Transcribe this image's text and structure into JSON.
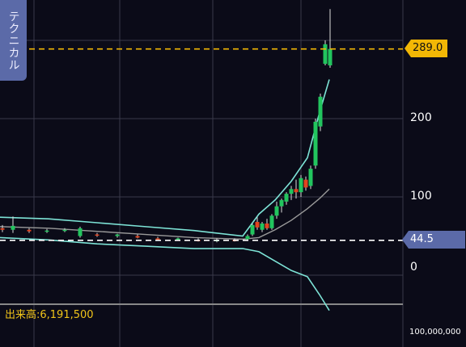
{
  "side_tab": {
    "label": "テクニカル"
  },
  "price_axis": {
    "ticks": [
      "200",
      "100",
      "0"
    ]
  },
  "price_tags": {
    "current": {
      "label": "289.0",
      "value": 289.0,
      "color": "#f2b705"
    },
    "reference": {
      "label": "44.5",
      "value": 44.5,
      "color": "#5b6aa8"
    }
  },
  "volume": {
    "label": "出来高:6,191,500",
    "axis_label": "100,000,000"
  },
  "colors": {
    "up": "#22c55e",
    "down": "#e2431e",
    "bollinger": "#7de3d6",
    "ma": "#9a9a9a",
    "grid": "#3a3a4a",
    "background": "#0b0b18"
  },
  "chart_data": {
    "type": "candlestick",
    "ylim": [
      -45,
      350
    ],
    "yticks": [
      0,
      100,
      200,
      300
    ],
    "grid": true,
    "horizontal_lines": [
      {
        "value": 289.0,
        "style": "dashed",
        "color": "#f2b705"
      },
      {
        "value": 44.5,
        "style": "dashed",
        "color": "#ffffff"
      }
    ],
    "candles": [
      {
        "x": 3,
        "o": 60,
        "h": 64,
        "l": 55,
        "c": 58
      },
      {
        "x": 16,
        "o": 58,
        "h": 75,
        "l": 54,
        "c": 63
      },
      {
        "x": 36,
        "o": 58,
        "h": 60,
        "l": 54,
        "c": 56
      },
      {
        "x": 58,
        "o": 56,
        "h": 59,
        "l": 54,
        "c": 57
      },
      {
        "x": 80,
        "o": 57,
        "h": 60,
        "l": 55,
        "c": 58
      },
      {
        "x": 99,
        "o": 50,
        "h": 62,
        "l": 48,
        "c": 60
      },
      {
        "x": 120,
        "o": 52,
        "h": 54,
        "l": 49,
        "c": 51
      },
      {
        "x": 145,
        "o": 50,
        "h": 53,
        "l": 48,
        "c": 52
      },
      {
        "x": 170,
        "o": 50,
        "h": 52,
        "l": 47,
        "c": 48
      },
      {
        "x": 195,
        "o": 47,
        "h": 49,
        "l": 45,
        "c": 46
      },
      {
        "x": 220,
        "o": 46,
        "h": 48,
        "l": 44,
        "c": 47
      },
      {
        "x": 245,
        "o": 45,
        "h": 47,
        "l": 43,
        "c": 44
      },
      {
        "x": 268,
        "o": 44,
        "h": 47,
        "l": 42,
        "c": 45
      },
      {
        "x": 290,
        "o": 45,
        "h": 47,
        "l": 43,
        "c": 44
      },
      {
        "x": 306,
        "o": 46,
        "h": 52,
        "l": 44,
        "c": 50
      },
      {
        "x": 312,
        "o": 52,
        "h": 66,
        "l": 50,
        "c": 64
      },
      {
        "x": 318,
        "o": 68,
        "h": 74,
        "l": 58,
        "c": 61
      },
      {
        "x": 324,
        "o": 58,
        "h": 68,
        "l": 55,
        "c": 66
      },
      {
        "x": 330,
        "o": 66,
        "h": 72,
        "l": 58,
        "c": 60
      },
      {
        "x": 336,
        "o": 60,
        "h": 78,
        "l": 58,
        "c": 76
      },
      {
        "x": 342,
        "o": 76,
        "h": 94,
        "l": 72,
        "c": 88
      },
      {
        "x": 348,
        "o": 88,
        "h": 98,
        "l": 80,
        "c": 96
      },
      {
        "x": 354,
        "o": 94,
        "h": 106,
        "l": 90,
        "c": 104
      },
      {
        "x": 360,
        "o": 104,
        "h": 114,
        "l": 96,
        "c": 110
      },
      {
        "x": 366,
        "o": 110,
        "h": 122,
        "l": 98,
        "c": 106
      },
      {
        "x": 372,
        "o": 106,
        "h": 128,
        "l": 100,
        "c": 124
      },
      {
        "x": 378,
        "o": 122,
        "h": 126,
        "l": 108,
        "c": 112
      },
      {
        "x": 384,
        "o": 114,
        "h": 140,
        "l": 110,
        "c": 136
      },
      {
        "x": 390,
        "o": 140,
        "h": 200,
        "l": 136,
        "c": 196
      },
      {
        "x": 396,
        "o": 190,
        "h": 232,
        "l": 184,
        "c": 228
      },
      {
        "x": 402,
        "o": 270,
        "h": 300,
        "l": 268,
        "c": 295
      },
      {
        "x": 408,
        "o": 268,
        "h": 340,
        "l": 265,
        "c": 289
      }
    ],
    "bollinger_upper": [
      [
        0,
        74
      ],
      [
        60,
        72
      ],
      [
        120,
        67
      ],
      [
        180,
        62
      ],
      [
        240,
        57
      ],
      [
        300,
        50
      ],
      [
        320,
        78
      ],
      [
        340,
        96
      ],
      [
        360,
        120
      ],
      [
        380,
        150
      ],
      [
        395,
        208
      ],
      [
        407,
        250
      ]
    ],
    "bollinger_lower": [
      [
        0,
        48
      ],
      [
        60,
        45
      ],
      [
        120,
        40
      ],
      [
        180,
        37
      ],
      [
        240,
        34
      ],
      [
        300,
        34
      ],
      [
        320,
        30
      ],
      [
        340,
        18
      ],
      [
        360,
        6
      ],
      [
        380,
        -2
      ],
      [
        395,
        -25
      ],
      [
        407,
        -45
      ]
    ],
    "moving_average": [
      [
        0,
        62
      ],
      [
        60,
        60
      ],
      [
        120,
        56
      ],
      [
        180,
        52
      ],
      [
        240,
        48
      ],
      [
        300,
        46
      ],
      [
        320,
        48
      ],
      [
        340,
        58
      ],
      [
        360,
        70
      ],
      [
        380,
        85
      ],
      [
        395,
        98
      ],
      [
        407,
        110
      ]
    ]
  }
}
